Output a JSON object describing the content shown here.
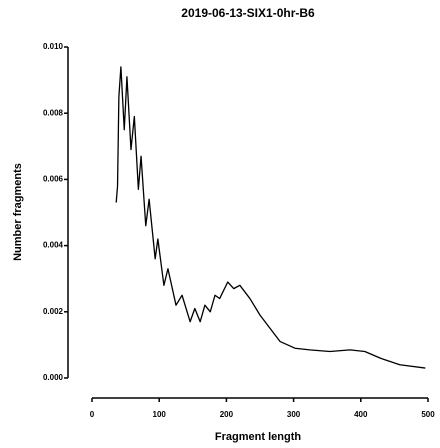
{
  "chart_data": {
    "type": "line",
    "title": "2019-06-13-SIX1-0hr-B6",
    "xlabel": "Fragment length",
    "ylabel": "Number fragments",
    "x": [
      36,
      38,
      40,
      43,
      48,
      52,
      58,
      63,
      69,
      73,
      80,
      85,
      94,
      98,
      107,
      113,
      125,
      134,
      146,
      153,
      161,
      168,
      176,
      183,
      190,
      202,
      211,
      220,
      235,
      250,
      265,
      280,
      302,
      324,
      354,
      384,
      406,
      429,
      458,
      496
    ],
    "values": [
      0.0053,
      0.0058,
      0.0085,
      0.0094,
      0.0075,
      0.0091,
      0.0069,
      0.0079,
      0.0057,
      0.0067,
      0.0046,
      0.0054,
      0.0036,
      0.0042,
      0.0028,
      0.0033,
      0.0022,
      0.0025,
      0.0017,
      0.0021,
      0.0017,
      0.0022,
      0.002,
      0.0025,
      0.0024,
      0.0029,
      0.0027,
      0.0028,
      0.0024,
      0.0019,
      0.0015,
      0.0011,
      0.0009,
      0.00085,
      0.0008,
      0.00085,
      0.0008,
      0.0006,
      0.0004,
      0.0003
    ],
    "color": "#000000",
    "xlim": [
      0,
      500
    ],
    "xticks": [
      0,
      100,
      200,
      300,
      400,
      500
    ],
    "ylim": [
      0,
      0.01
    ],
    "yticks": [
      {
        "value": 0,
        "label": "0.000"
      },
      {
        "value": 0.002,
        "label": "0.002"
      },
      {
        "value": 0.004,
        "label": "0.004"
      },
      {
        "value": 0.006,
        "label": "0.006"
      },
      {
        "value": 0.008,
        "label": "0.008"
      },
      {
        "value": 0.01,
        "label": "0.010"
      }
    ]
  }
}
